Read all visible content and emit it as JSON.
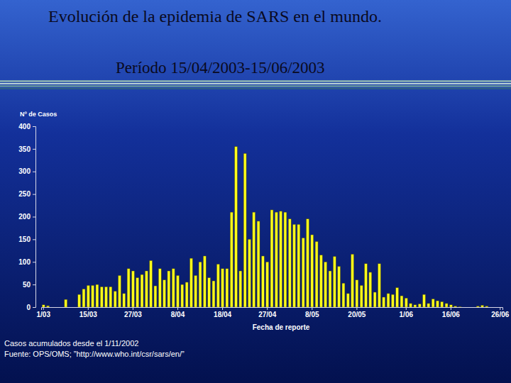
{
  "chart_data": {
    "type": "bar",
    "title": "Evolución de la epidemia de SARS en el mundo.",
    "subtitle": "Período 15/04/2003-15/06/2003",
    "x_label": "Fecha de reporte",
    "y_label": "Nº de Casos",
    "annotations": [
      "Casos acumulados desde el 1/11/2002",
      "Fuente: OPS/OMS; ”http://www.who.int/csr/sars/en/”"
    ],
    "categories": [
      "1/03",
      null,
      null,
      null,
      null,
      null,
      null,
      null,
      null,
      null,
      "15/03",
      null,
      null,
      null,
      null,
      null,
      null,
      null,
      null,
      null,
      "27/03",
      null,
      null,
      null,
      null,
      null,
      null,
      null,
      null,
      null,
      "8/04",
      null,
      null,
      null,
      null,
      null,
      null,
      null,
      null,
      null,
      "18/04",
      null,
      null,
      null,
      null,
      null,
      null,
      null,
      null,
      null,
      "27/04",
      null,
      null,
      null,
      null,
      null,
      null,
      null,
      null,
      null,
      "8/05",
      null,
      null,
      null,
      null,
      null,
      null,
      null,
      null,
      null,
      "20/05",
      null,
      null,
      null,
      null,
      null,
      null,
      null,
      null,
      null,
      null,
      "1/06",
      null,
      null,
      null,
      null,
      null,
      null,
      null,
      null,
      null,
      "16/06",
      null,
      null,
      null,
      null,
      null,
      null,
      null,
      null,
      null,
      null,
      "26/06"
    ],
    "values": [
      5,
      3,
      0,
      0,
      0,
      17,
      0,
      0,
      28,
      40,
      48,
      48,
      50,
      45,
      45,
      45,
      35,
      70,
      30,
      85,
      80,
      65,
      72,
      80,
      103,
      47,
      85,
      60,
      80,
      85,
      70,
      50,
      55,
      108,
      70,
      100,
      113,
      65,
      58,
      95,
      85,
      85,
      210,
      355,
      80,
      340,
      150,
      210,
      190,
      113,
      100,
      215,
      210,
      212,
      210,
      195,
      183,
      183,
      153,
      195,
      160,
      145,
      115,
      100,
      80,
      112,
      90,
      53,
      30,
      117,
      60,
      48,
      96,
      77,
      33,
      96,
      22,
      30,
      28,
      43,
      25,
      20,
      8,
      5,
      7,
      28,
      8,
      18,
      14,
      12,
      8,
      5,
      2,
      1,
      0,
      0,
      0,
      2,
      4,
      2,
      0,
      0,
      0
    ],
    "color": "#ffff1a",
    "ylim": [
      0,
      400
    ],
    "yticks": [
      0,
      50,
      100,
      150,
      200,
      250,
      300,
      350,
      400
    ],
    "grid": false
  }
}
